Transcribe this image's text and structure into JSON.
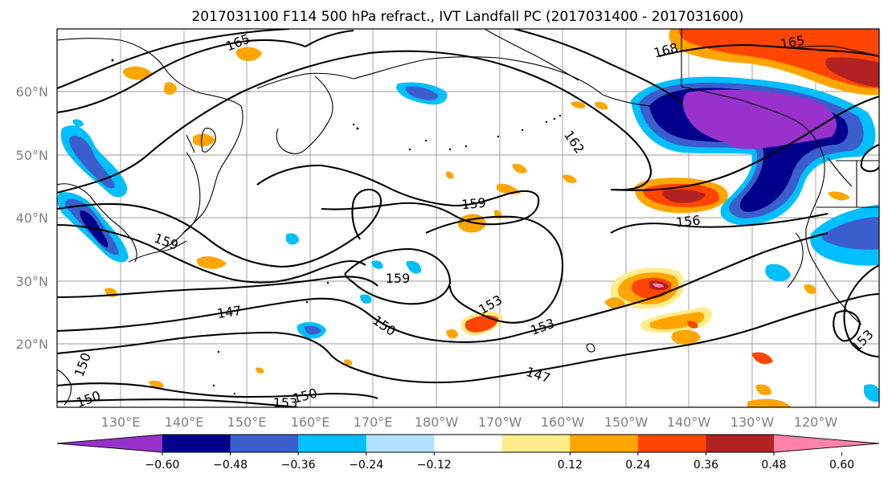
{
  "title": "2017031100 F114 500 hPa refract., IVT Landfall PC (2017031400 - 2017031600)",
  "lat_labels": [
    "60°N",
    "50°N",
    "40°N",
    "30°N",
    "20°N"
  ],
  "lon_labels": [
    "130°E",
    "140°E",
    "150°E",
    "160°E",
    "170°E",
    "180°W",
    "170°W",
    "160°W",
    "150°W",
    "140°W",
    "130°W",
    "120°W"
  ],
  "contour_labels": {
    "c165_w": "165",
    "c165_e": "165",
    "c168": "168",
    "c162": "162",
    "c159_a": "159",
    "c159_b": "159",
    "c159_c": "159",
    "c156": "156",
    "c153_a": "153",
    "c153_b": "153",
    "c153_c": "153",
    "c153_d": "153",
    "c150_a": "150",
    "c150_b": "150",
    "c150_c": "150",
    "c150_d": "150",
    "c147_a": "147",
    "c147_b": "147"
  },
  "colorbar": {
    "ticks": [
      "−0.60",
      "−0.48",
      "−0.36",
      "−0.24",
      "−0.12",
      "0.12",
      "0.24",
      "0.36",
      "0.48",
      "0.60"
    ],
    "colors": [
      "#9932cc",
      "#00008b",
      "#3a5fcd",
      "#00bfff",
      "#b0e2ff",
      "#ffffff",
      "#ffec8b",
      "#ffa500",
      "#ff4500",
      "#b22222",
      "#ff82ab"
    ]
  }
}
